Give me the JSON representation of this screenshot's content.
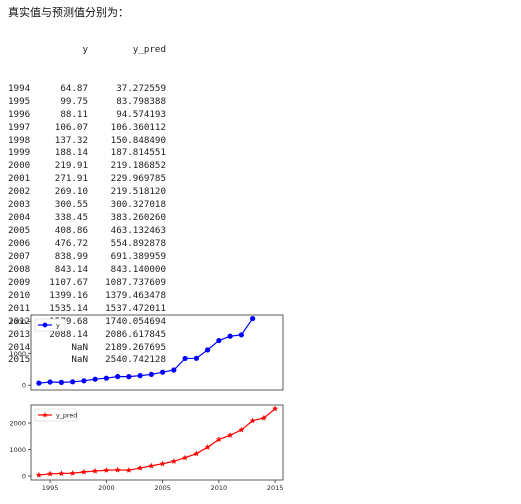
{
  "header": {
    "title": "真实值与预测值分别为："
  },
  "table": {
    "columns": [
      "y",
      "y_pred"
    ],
    "rows": [
      {
        "index": "1994",
        "y": "64.87",
        "y_pred": "37.272559"
      },
      {
        "index": "1995",
        "y": "99.75",
        "y_pred": "83.798388"
      },
      {
        "index": "1996",
        "y": "88.11",
        "y_pred": "94.574193"
      },
      {
        "index": "1997",
        "y": "106.07",
        "y_pred": "106.360112"
      },
      {
        "index": "1998",
        "y": "137.32",
        "y_pred": "150.848490"
      },
      {
        "index": "1999",
        "y": "188.14",
        "y_pred": "187.814551"
      },
      {
        "index": "2000",
        "y": "219.91",
        "y_pred": "219.186852"
      },
      {
        "index": "2001",
        "y": "271.91",
        "y_pred": "229.969785"
      },
      {
        "index": "2002",
        "y": "269.10",
        "y_pred": "219.518120"
      },
      {
        "index": "2003",
        "y": "300.55",
        "y_pred": "300.327018"
      },
      {
        "index": "2004",
        "y": "338.45",
        "y_pred": "383.260260"
      },
      {
        "index": "2005",
        "y": "408.86",
        "y_pred": "463.132463"
      },
      {
        "index": "2006",
        "y": "476.72",
        "y_pred": "554.892878"
      },
      {
        "index": "2007",
        "y": "838.99",
        "y_pred": "691.389959"
      },
      {
        "index": "2008",
        "y": "843.14",
        "y_pred": "843.140000"
      },
      {
        "index": "2009",
        "y": "1107.67",
        "y_pred": "1087.737609"
      },
      {
        "index": "2010",
        "y": "1399.16",
        "y_pred": "1379.463478"
      },
      {
        "index": "2011",
        "y": "1535.14",
        "y_pred": "1537.472011"
      },
      {
        "index": "2012",
        "y": "1579.68",
        "y_pred": "1740.054694"
      },
      {
        "index": "2013",
        "y": "2088.14",
        "y_pred": "2086.617845"
      },
      {
        "index": "2014",
        "y": "NaN",
        "y_pred": "2189.267695"
      },
      {
        "index": "2015",
        "y": "NaN",
        "y_pred": "2540.742128"
      }
    ]
  },
  "chart_data": [
    {
      "type": "line",
      "x": [
        1994,
        1995,
        1996,
        1997,
        1998,
        1999,
        2000,
        2001,
        2002,
        2003,
        2004,
        2005,
        2006,
        2007,
        2008,
        2009,
        2010,
        2011,
        2012,
        2013,
        2014,
        2015
      ],
      "series": [
        {
          "name": "y",
          "color": "#0000ff",
          "marker": "circle",
          "values": [
            64.87,
            99.75,
            88.11,
            106.07,
            137.32,
            188.14,
            219.91,
            271.91,
            269.1,
            300.55,
            338.45,
            408.86,
            476.72,
            838.99,
            843.14,
            1107.67,
            1399.16,
            1535.14,
            1579.68,
            2088.14,
            null,
            null
          ]
        }
      ],
      "yticks": [
        0,
        1000,
        2000
      ],
      "xlim": [
        1993.3,
        2015.7
      ],
      "ylim": [
        -150,
        2200
      ],
      "xticks_visible": false,
      "legend": "top-left"
    },
    {
      "type": "line",
      "x": [
        1994,
        1995,
        1996,
        1997,
        1998,
        1999,
        2000,
        2001,
        2002,
        2003,
        2004,
        2005,
        2006,
        2007,
        2008,
        2009,
        2010,
        2011,
        2012,
        2013,
        2014,
        2015
      ],
      "series": [
        {
          "name": "y_pred",
          "color": "#ff0000",
          "marker": "star",
          "values": [
            37.272559,
            83.798388,
            94.574193,
            106.360112,
            150.84849,
            187.814551,
            219.186852,
            229.969785,
            219.51812,
            300.327018,
            383.26026,
            463.132463,
            554.892878,
            691.389959,
            843.14,
            1087.737609,
            1379.463478,
            1537.472011,
            1740.054694,
            2086.617845,
            2189.267695,
            2540.742128
          ]
        }
      ],
      "yticks": [
        0,
        1000,
        2000
      ],
      "xticks": [
        1995,
        2000,
        2005,
        2010,
        2015
      ],
      "xlim": [
        1993.3,
        2015.7
      ],
      "ylim": [
        -150,
        2680
      ],
      "legend": "top-left"
    }
  ]
}
